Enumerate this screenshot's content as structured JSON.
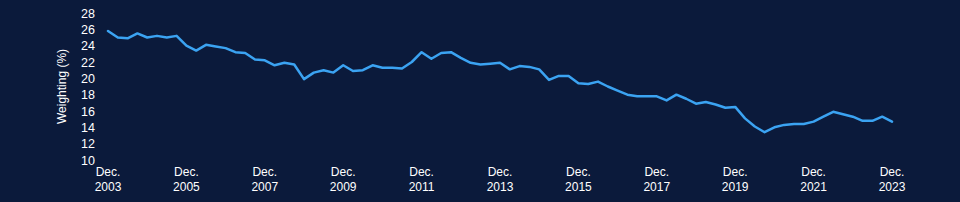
{
  "chart_data": {
    "type": "line",
    "y_label": "Weighting (%)",
    "categories": [
      "Dec. 2003",
      null,
      null,
      null,
      null,
      null,
      null,
      null,
      "Dec. 2005",
      null,
      null,
      null,
      null,
      null,
      null,
      null,
      "Dec. 2007",
      null,
      null,
      null,
      null,
      null,
      null,
      null,
      "Dec. 2009",
      null,
      null,
      null,
      null,
      null,
      null,
      null,
      "Dec. 2011",
      null,
      null,
      null,
      null,
      null,
      null,
      null,
      "Dec. 2013",
      null,
      null,
      null,
      null,
      null,
      null,
      null,
      "Dec. 2015",
      null,
      null,
      null,
      null,
      null,
      null,
      null,
      "Dec. 2017",
      null,
      null,
      null,
      null,
      null,
      null,
      null,
      "Dec. 2019",
      null,
      null,
      null,
      null,
      null,
      null,
      null,
      "Dec. 2021",
      null,
      null,
      null,
      null,
      null,
      null,
      null,
      "Dec. 2023"
    ],
    "values": [
      25.8,
      25.0,
      24.9,
      25.5,
      25.0,
      25.2,
      25.0,
      25.2,
      24.0,
      23.4,
      24.1,
      23.9,
      23.7,
      23.2,
      23.1,
      22.3,
      22.2,
      21.6,
      21.9,
      21.7,
      19.9,
      20.7,
      21.0,
      20.7,
      21.6,
      20.9,
      21.0,
      21.6,
      21.3,
      21.3,
      21.2,
      22.0,
      23.2,
      22.4,
      23.1,
      23.2,
      22.5,
      21.9,
      21.7,
      21.8,
      21.9,
      21.1,
      21.5,
      21.4,
      21.1,
      19.8,
      20.3,
      20.3,
      19.4,
      19.3,
      19.6,
      19.0,
      18.5,
      18.0,
      17.8,
      17.8,
      17.8,
      17.3,
      18.0,
      17.5,
      16.9,
      17.1,
      16.8,
      16.4,
      16.5,
      15.1,
      14.1,
      13.4,
      14.0,
      14.3,
      14.4,
      14.4,
      14.7,
      15.3,
      15.9,
      15.6,
      15.3,
      14.8,
      14.8,
      15.3,
      14.7
    ],
    "color": "#3ba3f2",
    "ylim": [
      10,
      28
    ],
    "yticks": [
      10,
      12,
      14,
      16,
      18,
      20,
      22,
      24,
      26,
      28
    ],
    "grid": false
  }
}
